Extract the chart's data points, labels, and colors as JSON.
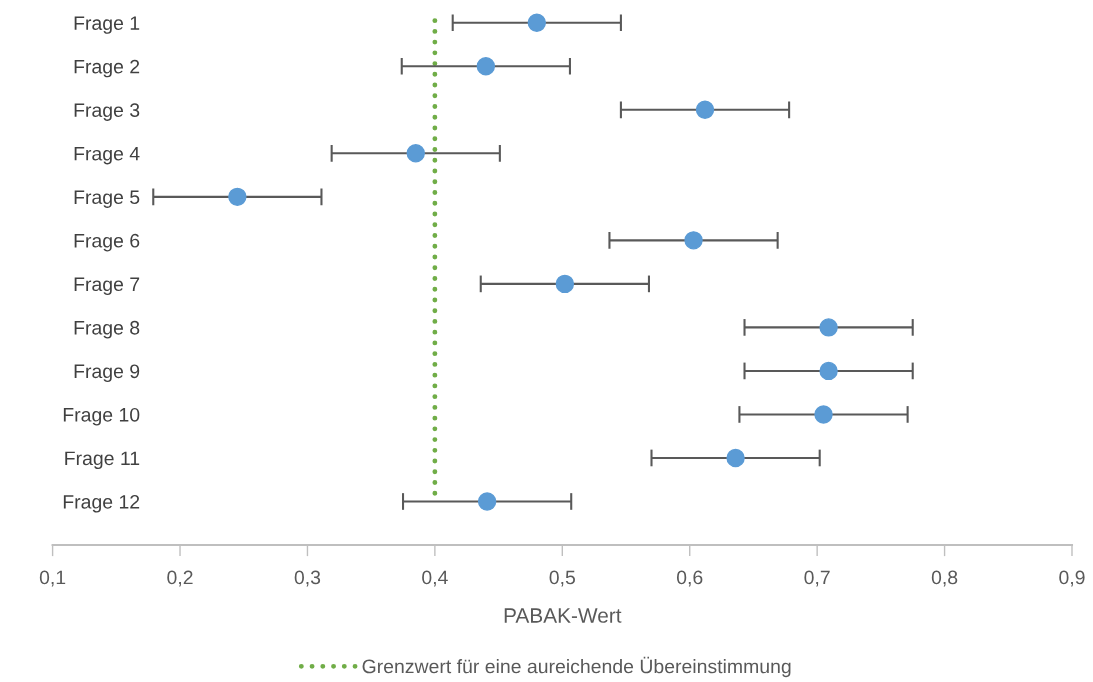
{
  "chart_data": {
    "type": "scatter",
    "orientation": "horizontal",
    "xlabel": "PABAK-Wert",
    "categories": [
      "Frage 1",
      "Frage 2",
      "Frage 3",
      "Frage 4",
      "Frage 5",
      "Frage 6",
      "Frage 7",
      "Frage 8",
      "Frage 9",
      "Frage 10",
      "Frage 11",
      "Frage 12"
    ],
    "series": [
      {
        "color": "#5b9bd5",
        "values": [
          0.48,
          0.44,
          0.612,
          0.385,
          0.245,
          0.603,
          0.502,
          0.709,
          0.709,
          0.705,
          0.636,
          0.441
        ],
        "errors": [
          0.066,
          0.066,
          0.066,
          0.066,
          0.066,
          0.066,
          0.066,
          0.066,
          0.066,
          0.066,
          0.066,
          0.066
        ]
      }
    ],
    "xlim": [
      0.1,
      0.9
    ],
    "xticks": [
      {
        "value": 0.1,
        "label": "0,1"
      },
      {
        "value": 0.2,
        "label": "0,2"
      },
      {
        "value": 0.3,
        "label": "0,3"
      },
      {
        "value": 0.4,
        "label": "0,4"
      },
      {
        "value": 0.5,
        "label": "0,5"
      },
      {
        "value": 0.6,
        "label": "0,6"
      },
      {
        "value": 0.7,
        "label": "0,7"
      },
      {
        "value": 0.8,
        "label": "0,8"
      },
      {
        "value": 0.9,
        "label": "0,9"
      }
    ],
    "ref_lines": [
      {
        "axis": "x",
        "value": 0.4,
        "label": "Grenzwert für eine aureichende Übereinstimmung",
        "color": "#70ad47",
        "line_style": "dotted"
      }
    ],
    "marker": "circle",
    "grid": false,
    "legend": "bottom"
  }
}
